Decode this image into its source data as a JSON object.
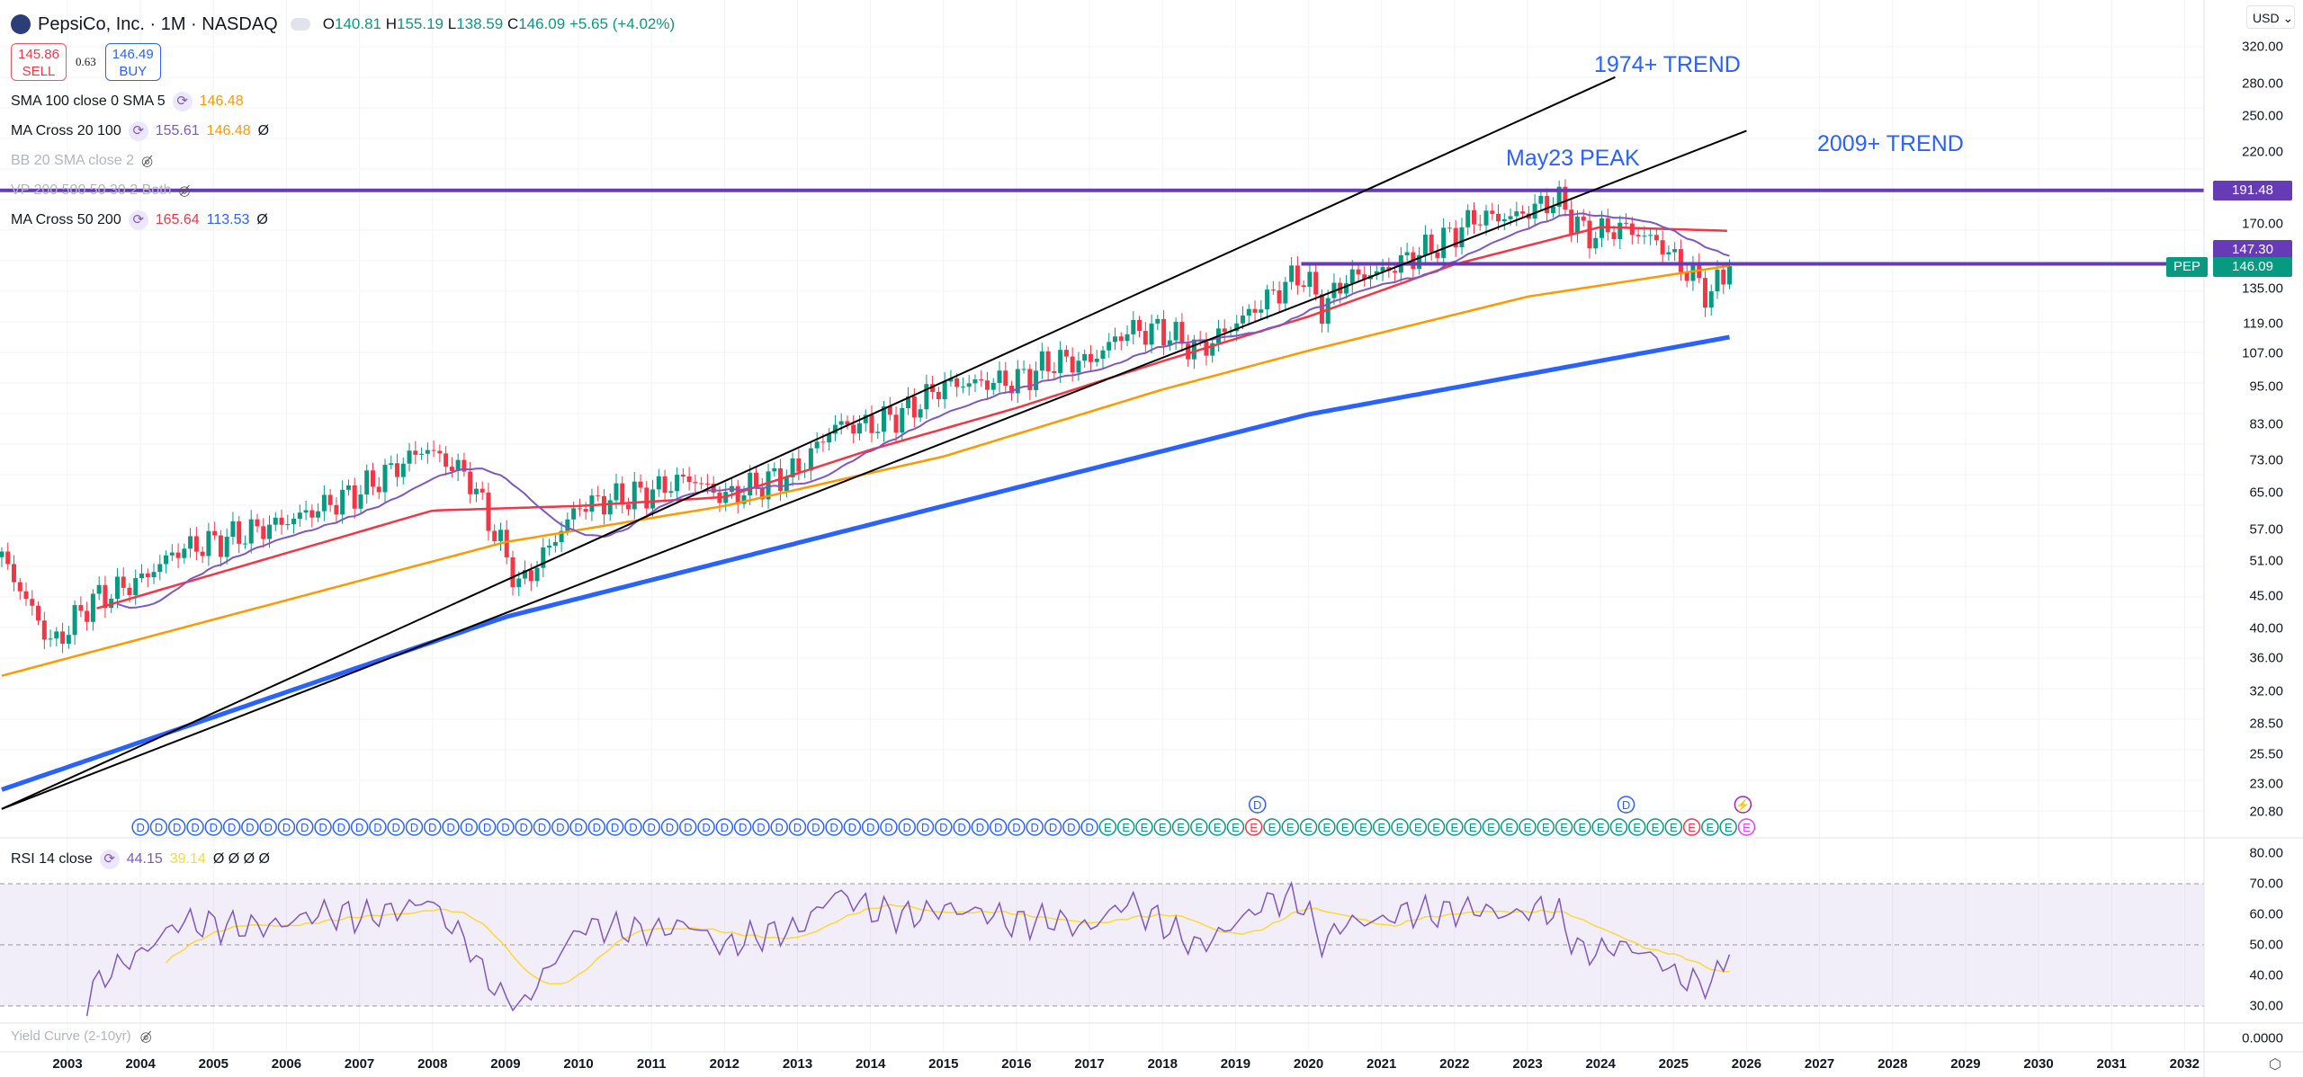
{
  "header": {
    "title": "PepsiCo, Inc. · 1M · NASDAQ",
    "o_label": "O",
    "o": "140.81",
    "h_label": "H",
    "h": "155.19",
    "l_label": "L",
    "l": "138.59",
    "c_label": "C",
    "c": "146.09",
    "change": "+5.65 (+4.02%)"
  },
  "trade": {
    "sell_price": "145.86",
    "sell_label": "SELL",
    "spread": "0.63",
    "buy_price": "146.49",
    "buy_label": "BUY"
  },
  "indicators": [
    {
      "name": "SMA 100 close 0 SMA 5",
      "v1": "146.48",
      "c1": "#ff9800"
    },
    {
      "name": "MA Cross 20 100",
      "v1": "155.61",
      "c1": "#7e57c2",
      "v2": "146.48",
      "c2": "#ff9800",
      "v3": "Ø"
    },
    {
      "name": "BB 20 SMA close 2",
      "hidden": true
    },
    {
      "name": "VP 200 500 50 30 2 Both",
      "hidden": true
    },
    {
      "name": "MA Cross 50 200",
      "v1": "165.64",
      "c1": "#f23645",
      "v2": "113.53",
      "c2": "#2962ff",
      "v3": "Ø"
    }
  ],
  "currency": "USD",
  "price_axis": [
    "320.00",
    "280.00",
    "250.00",
    "220.00",
    "170.00",
    "135.00",
    "119.00",
    "107.00",
    "95.00",
    "83.00",
    "73.00",
    "65.00",
    "57.00",
    "51.00",
    "45.00",
    "40.00",
    "36.00",
    "32.00",
    "28.50",
    "25.50",
    "23.00",
    "20.80"
  ],
  "price_labels": {
    "level_high": "191.48",
    "level_mid": "147.30",
    "symbol": "PEP",
    "last": "146.09"
  },
  "annotations": {
    "trend1974": "1974+ TREND",
    "trend2009": "2009+ TREND",
    "peak": "May23 PEAK"
  },
  "markers": {
    "dividend": "D",
    "earnings": "E"
  },
  "rsi": {
    "name": "RSI 14 close",
    "v1": "44.15",
    "v2": "39.14",
    "extra": "Ø Ø Ø Ø",
    "axis": [
      "80.00",
      "70.00",
      "60.00",
      "50.00",
      "40.00",
      "30.00"
    ]
  },
  "yield_curve": {
    "name": "Yield Curve (2-10yr)",
    "axis": "0.0000"
  },
  "time_axis": [
    "2003",
    "2004",
    "2005",
    "2006",
    "2007",
    "2008",
    "2009",
    "2010",
    "2011",
    "2012",
    "2013",
    "2014",
    "2015",
    "2016",
    "2017",
    "2018",
    "2019",
    "2020",
    "2021",
    "2022",
    "2023",
    "2024",
    "2025",
    "2026",
    "2027",
    "2028",
    "2029",
    "2030",
    "2031",
    "2032"
  ],
  "colors": {
    "up": "#089981",
    "down": "#f23645",
    "ma20": "#7e57c2",
    "ma50": "#f23645",
    "ma100": "#ff9800",
    "ma200": "#2962ff",
    "level": "#673ab7",
    "rsi": "#7e57c2",
    "rsi_ma": "#fdd835"
  },
  "chart_data": {
    "type": "candlestick",
    "interval": "1M",
    "scale": "log",
    "ylim": [
      20.8,
      320
    ],
    "price_path": [
      [
        2002.1,
        51.6
      ],
      [
        2002.8,
        37.6
      ],
      [
        2003.3,
        44
      ],
      [
        2004.0,
        47.6
      ],
      [
        2004.5,
        52.9
      ],
      [
        2005.0,
        54.5
      ],
      [
        2006.0,
        58.7
      ],
      [
        2007.0,
        65.3
      ],
      [
        2007.9,
        76.4
      ],
      [
        2008.5,
        68.7
      ],
      [
        2009.2,
        46.4
      ],
      [
        2010.0,
        62
      ],
      [
        2011.0,
        65.3
      ],
      [
        2011.5,
        68.7
      ],
      [
        2012.0,
        63.9
      ],
      [
        2013.0,
        70.5
      ],
      [
        2013.5,
        82.7
      ],
      [
        2014.0,
        82.7
      ],
      [
        2014.5,
        87
      ],
      [
        2015.0,
        95.6
      ],
      [
        2016.0,
        97
      ],
      [
        2016.5,
        104
      ],
      [
        2017.0,
        104
      ],
      [
        2017.5,
        116
      ],
      [
        2018.0,
        116
      ],
      [
        2018.5,
        108
      ],
      [
        2019.0,
        119
      ],
      [
        2019.9,
        143
      ],
      [
        2020.2,
        125
      ],
      [
        2020.5,
        140
      ],
      [
        2021.0,
        143
      ],
      [
        2021.8,
        159
      ],
      [
        2022.3,
        174
      ],
      [
        2022.8,
        174
      ],
      [
        2023.4,
        186
      ],
      [
        2023.8,
        163
      ],
      [
        2024.3,
        168
      ],
      [
        2024.8,
        159
      ],
      [
        2025.0,
        150
      ],
      [
        2025.3,
        140
      ],
      [
        2025.5,
        131
      ],
      [
        2025.7,
        143
      ],
      [
        2025.8,
        146.09
      ]
    ],
    "ma50": [
      [
        2003.4,
        43
      ],
      [
        2008,
        61
      ],
      [
        2010,
        62
      ],
      [
        2012,
        64
      ],
      [
        2014,
        75.8
      ],
      [
        2016,
        88
      ],
      [
        2018,
        104
      ],
      [
        2020,
        122
      ],
      [
        2022,
        147
      ],
      [
        2024,
        168
      ],
      [
        2025.8,
        165.64
      ]
    ],
    "ma100": [
      [
        2002.1,
        33.8
      ],
      [
        2009,
        54.5
      ],
      [
        2012,
        62
      ],
      [
        2015,
        74
      ],
      [
        2018,
        94
      ],
      [
        2020,
        108
      ],
      [
        2023,
        131
      ],
      [
        2025.8,
        146.48
      ]
    ],
    "ma200": [
      [
        2002.1,
        22.5
      ],
      [
        2009,
        41.7
      ],
      [
        2015,
        62
      ],
      [
        2020,
        86
      ],
      [
        2025.8,
        113.53
      ]
    ],
    "levels": [
      191.48,
      147.3
    ],
    "trendlines": [
      {
        "label": "1974+ TREND",
        "from": [
          2002.1,
          21
        ],
        "to": [
          2024.2,
          287
        ]
      },
      {
        "label": "2009+ TREND",
        "from": [
          2002.1,
          21
        ],
        "to": [
          2026.0,
          237
        ]
      }
    ]
  }
}
